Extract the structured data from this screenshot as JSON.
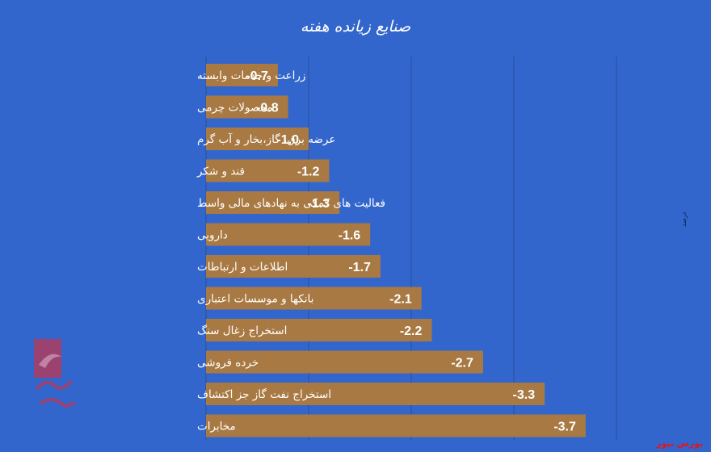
{
  "chart_data": {
    "type": "bar",
    "orientation": "horizontal",
    "title": "صنایع زیانده هفته",
    "categories": [
      "زراعت و خدمات وابسته",
      "محصولات چرمی",
      "عرضه برق، گاز،بخار و آب گرم",
      "قند و شکر",
      "فعالیت های کمکی به نهادهای مالی واسط",
      "دارویی",
      "اطلاعات و ارتباطات",
      "بانکها و موسسات اعتباری",
      "استخراج زغال سنگ",
      "خرده فروشی",
      "استخراج نفت گاز جز اکتشاف",
      "مخابرات"
    ],
    "values": [
      -0.7,
      -0.8,
      -1.0,
      -1.2,
      -1.3,
      -1.6,
      -1.7,
      -2.1,
      -2.2,
      -2.7,
      -3.3,
      -3.7
    ],
    "value_labels": [
      "-0.7",
      "-0.8",
      "-1.0",
      "-1.2",
      "-1.3",
      "-1.6",
      "-1.7",
      "-2.1",
      "-2.2",
      "-2.7",
      "-3.3",
      "-3.7"
    ],
    "xlim": [
      0,
      -4.5
    ],
    "grid": true,
    "colors": {
      "bar": "#a87942",
      "background": "#3366cc",
      "grid": "#2a4f9c",
      "text": "#ffffff"
    }
  },
  "watermark": {
    "text": "بورس نیوز",
    "color": "#e0161b"
  },
  "side_note": "درصد"
}
